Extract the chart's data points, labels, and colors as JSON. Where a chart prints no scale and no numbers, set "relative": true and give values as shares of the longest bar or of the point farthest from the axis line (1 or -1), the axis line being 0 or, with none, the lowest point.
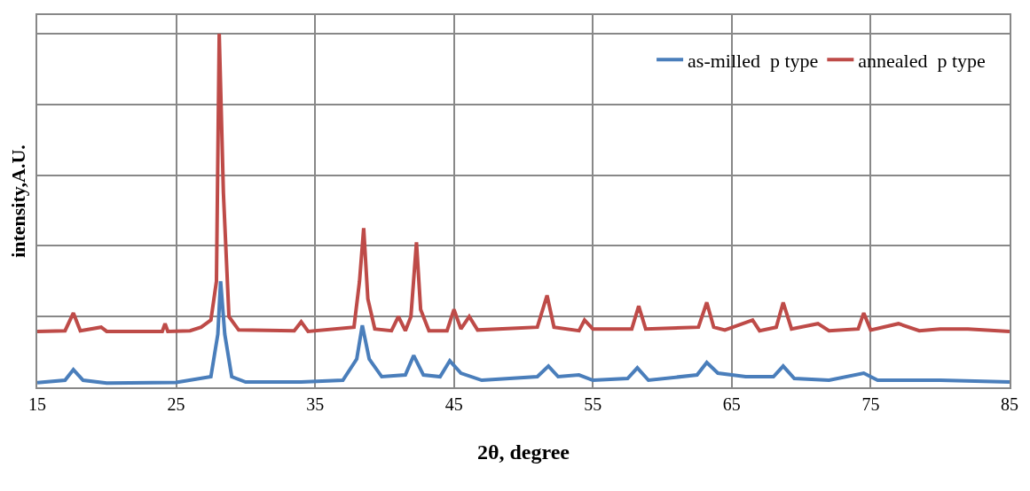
{
  "chart_data": {
    "type": "line",
    "xlabel": "2θ, degree",
    "ylabel": "intensity,A.U.",
    "relative": true,
    "xlim": [
      15,
      85
    ],
    "xticks": [
      15,
      25,
      35,
      45,
      55,
      65,
      75,
      85
    ],
    "grid": true,
    "legend": "top right",
    "marker": "none",
    "line_style": "solid",
    "series": [
      {
        "name": "as-milled  p type",
        "color": "#4a7ebb",
        "x": [
          15,
          17,
          17.6,
          18.3,
          20,
          25,
          27.5,
          28,
          28.2,
          28.5,
          29,
          30,
          34,
          37,
          38,
          38.4,
          38.9,
          39.8,
          41.5,
          42.1,
          42.8,
          44,
          44.7,
          45.5,
          47,
          51,
          51.8,
          52.5,
          54,
          55,
          57.5,
          58.2,
          59,
          62.5,
          63.2,
          64,
          65,
          66,
          68,
          68.7,
          69.5,
          72,
          74.5,
          75.5,
          80,
          85
        ],
        "values": [
          0.013,
          0.02,
          0.05,
          0.02,
          0.012,
          0.014,
          0.03,
          0.15,
          0.3,
          0.15,
          0.03,
          0.015,
          0.015,
          0.02,
          0.08,
          0.175,
          0.08,
          0.03,
          0.035,
          0.09,
          0.035,
          0.03,
          0.075,
          0.04,
          0.02,
          0.03,
          0.06,
          0.03,
          0.035,
          0.02,
          0.025,
          0.055,
          0.02,
          0.035,
          0.07,
          0.04,
          0.035,
          0.03,
          0.03,
          0.06,
          0.025,
          0.02,
          0.04,
          0.02,
          0.02,
          0.015
        ]
      },
      {
        "name": "annealed  p type",
        "color": "#be4b48",
        "x": [
          15,
          17,
          17.6,
          18.1,
          19.6,
          20,
          24,
          24.2,
          24.4,
          26,
          26.8,
          27.5,
          27.9,
          28.1,
          28.4,
          28.8,
          29.5,
          33.5,
          34,
          34.5,
          37.8,
          38.2,
          38.5,
          38.8,
          39.3,
          40.5,
          41,
          41.5,
          41.9,
          42.3,
          42.6,
          43.2,
          44.5,
          45,
          45.5,
          46.1,
          46.7,
          51,
          51.7,
          52.2,
          54,
          54.4,
          55,
          57.8,
          58.3,
          58.8,
          62.6,
          63.2,
          63.7,
          64.5,
          66.5,
          67,
          68.2,
          68.7,
          69.3,
          71.2,
          72,
          74.1,
          74.5,
          75,
          77,
          78.5,
          80,
          82,
          85
        ],
        "values": [
          0.158,
          0.16,
          0.21,
          0.16,
          0.17,
          0.158,
          0.158,
          0.18,
          0.158,
          0.16,
          0.17,
          0.19,
          0.3,
          1,
          0.55,
          0.2,
          0.162,
          0.16,
          0.185,
          0.158,
          0.17,
          0.3,
          0.45,
          0.25,
          0.165,
          0.16,
          0.2,
          0.16,
          0.2,
          0.41,
          0.22,
          0.16,
          0.16,
          0.22,
          0.165,
          0.2,
          0.162,
          0.17,
          0.26,
          0.17,
          0.16,
          0.19,
          0.165,
          0.165,
          0.23,
          0.165,
          0.17,
          0.24,
          0.17,
          0.162,
          0.19,
          0.16,
          0.17,
          0.24,
          0.165,
          0.18,
          0.16,
          0.165,
          0.21,
          0.162,
          0.18,
          0.16,
          0.165,
          0.165,
          0.158
        ]
      }
    ]
  }
}
